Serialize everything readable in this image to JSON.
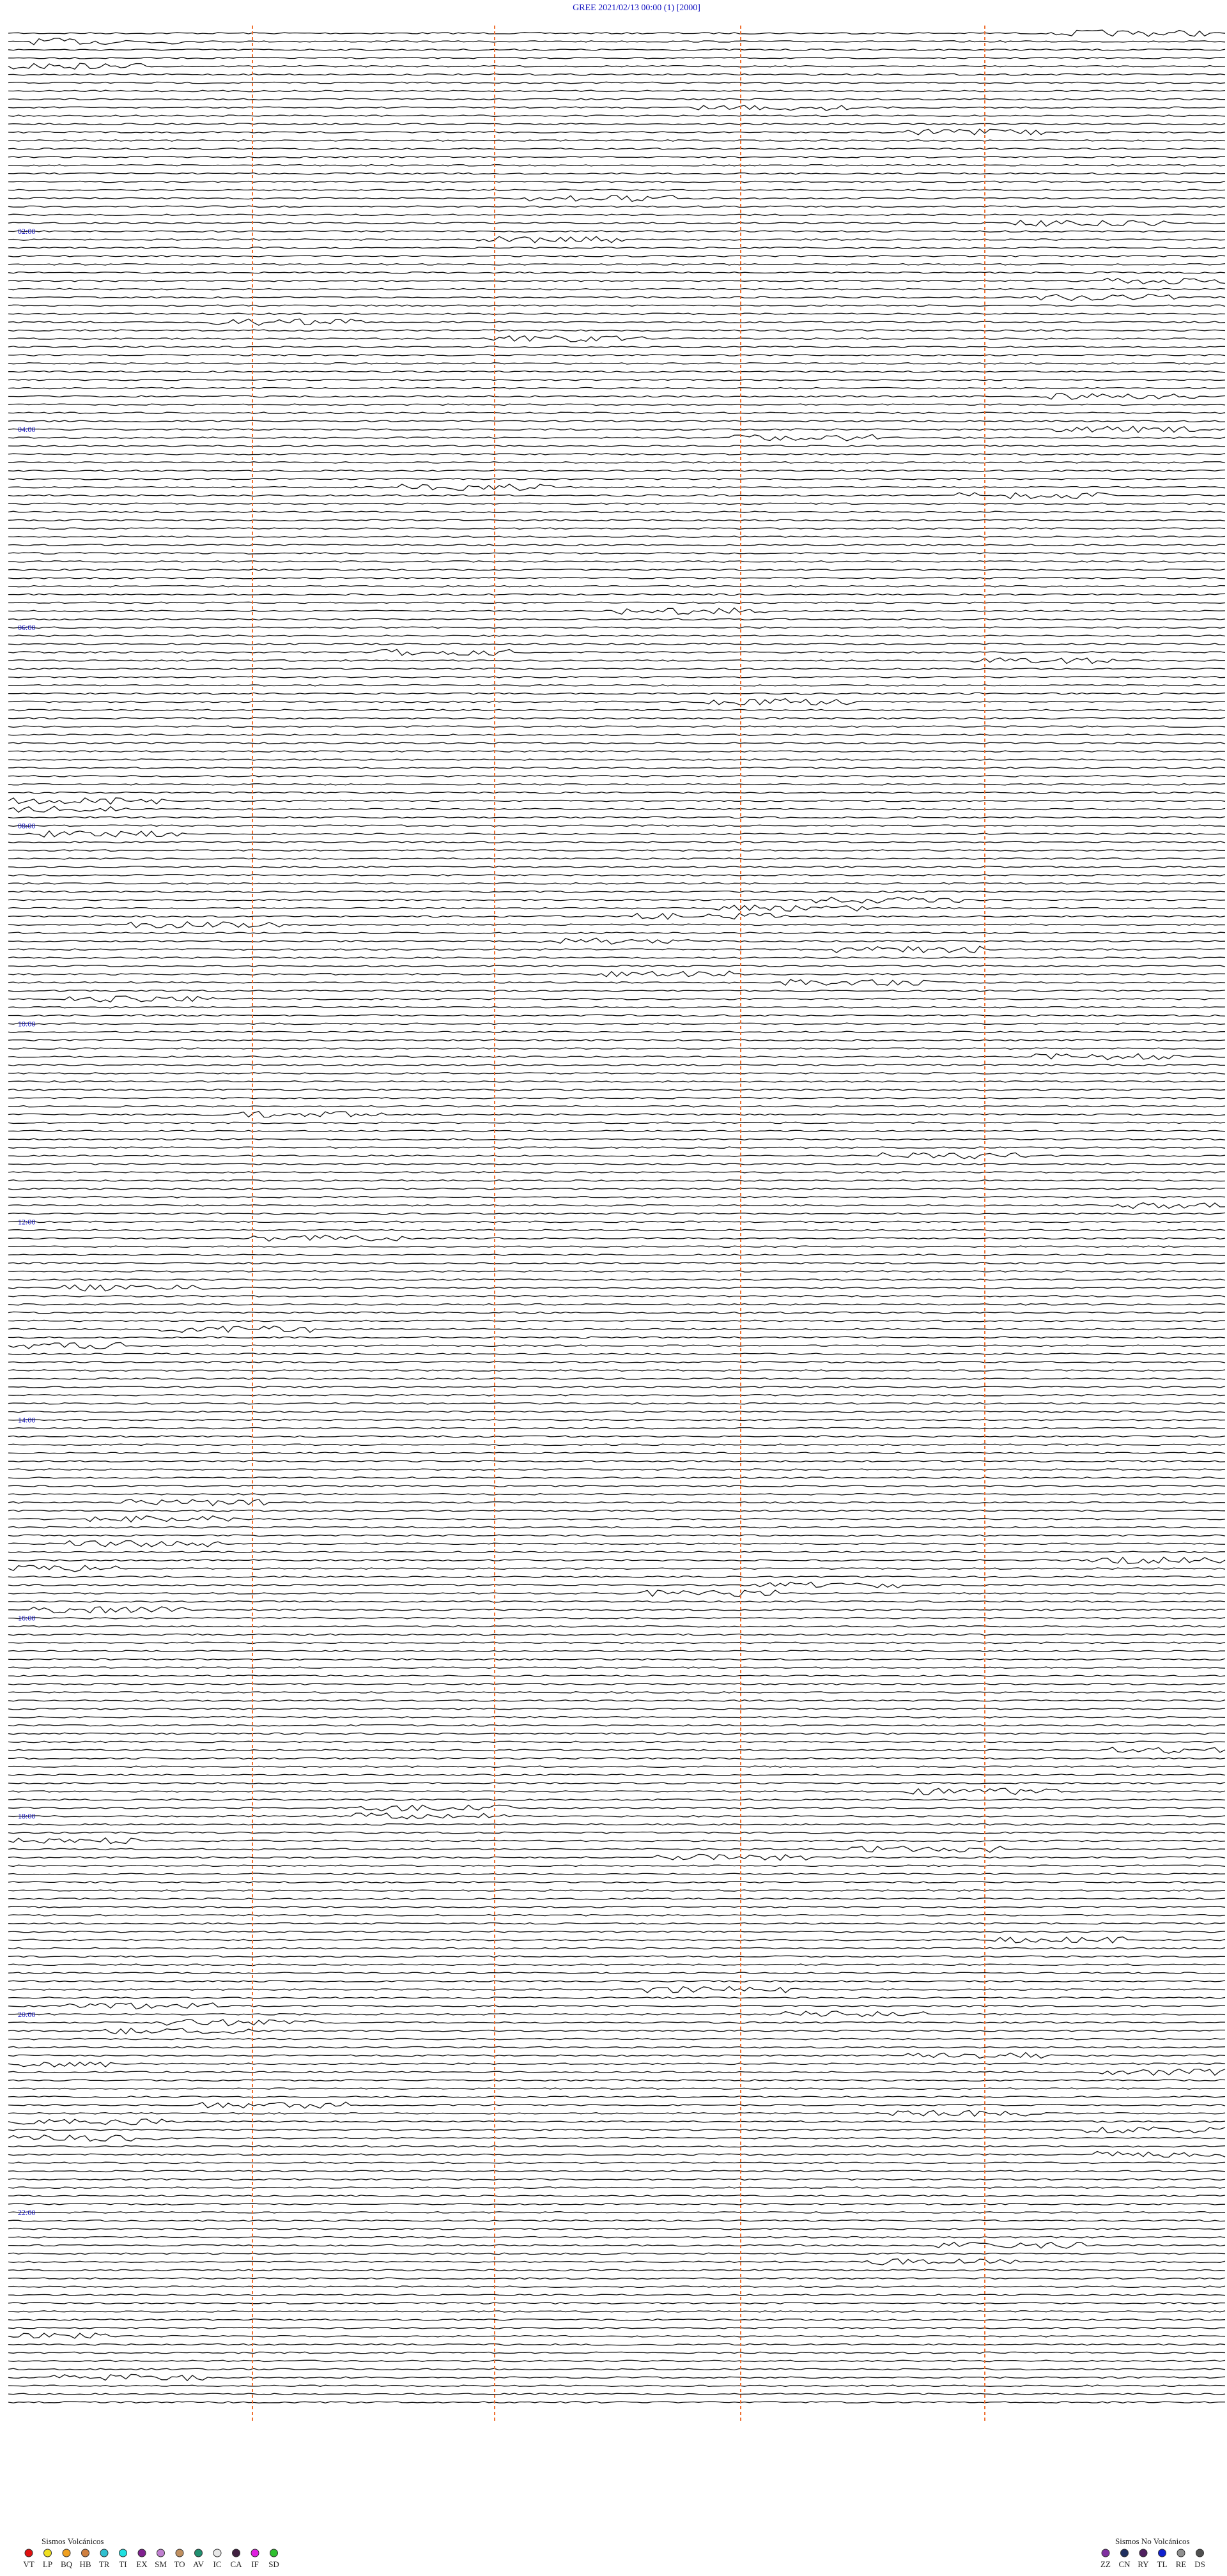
{
  "header": {
    "title": "GREE     2021/02/13 00:00      (1)    [2000]"
  },
  "time_labels": [
    "02:00",
    "04:00",
    "06:00",
    "08:00",
    "10:00",
    "12:00",
    "14:00",
    "16:00",
    "18:00",
    "20:00",
    "22:00"
  ],
  "legend": [
    {
      "title": "Sismos Volcánicos",
      "items": [
        {
          "label": "VT",
          "color": "#e01010"
        },
        {
          "label": "LP",
          "color": "#f0e020"
        },
        {
          "label": "BQ",
          "color": "#f0a020"
        },
        {
          "label": "HB",
          "color": "#d08040"
        },
        {
          "label": "TR",
          "color": "#30c0d0"
        },
        {
          "label": "TI",
          "color": "#20e0e0"
        },
        {
          "label": "EX",
          "color": "#802090"
        },
        {
          "label": "SM",
          "color": "#c080d0"
        },
        {
          "label": "TO",
          "color": "#c09060"
        },
        {
          "label": "AV",
          "color": "#209070"
        },
        {
          "label": "IC",
          "color": "#e8e8e8"
        },
        {
          "label": "CA",
          "color": "#402040"
        },
        {
          "label": "IF",
          "color": "#e020e0"
        },
        {
          "label": "SD",
          "color": "#30c030"
        }
      ]
    },
    {
      "title": "Sismos No Volcánicos",
      "items": [
        {
          "label": "ZZ",
          "color": "#8030a0"
        },
        {
          "label": "CN",
          "color": "#203060"
        },
        {
          "label": "RY",
          "color": "#502060"
        },
        {
          "label": "TL",
          "color": "#1020d0"
        },
        {
          "label": "RE",
          "color": "#909090"
        },
        {
          "label": "DS",
          "color": "#505050"
        }
      ]
    }
  ]
}
